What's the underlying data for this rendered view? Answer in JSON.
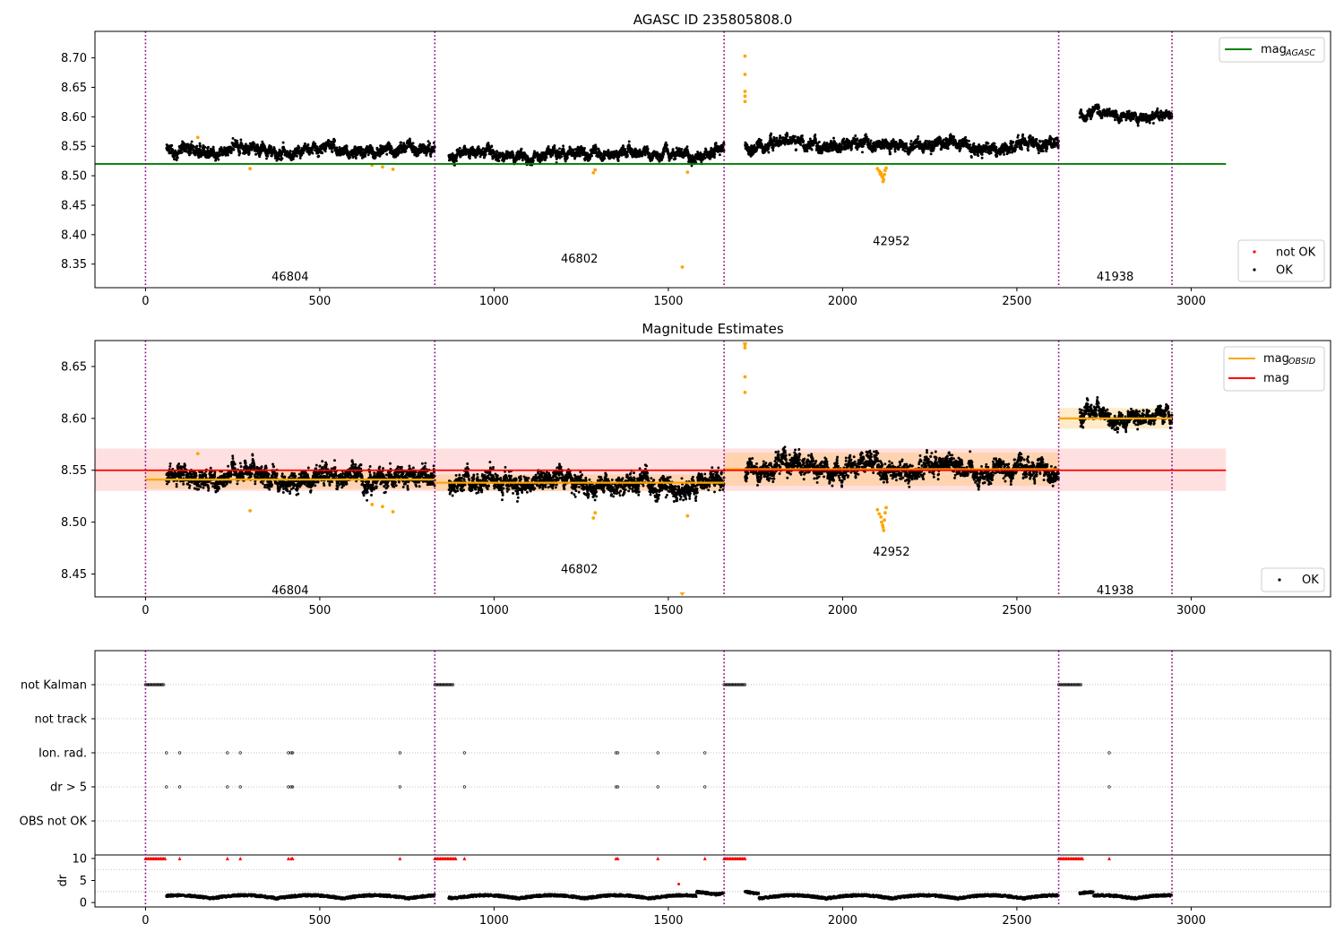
{
  "chart_data": [
    {
      "type": "scatter",
      "title": "AGASC ID 235805808.0",
      "xlim": [
        -145,
        3400
      ],
      "ylim": [
        8.31,
        8.745
      ],
      "xticks": [
        0,
        500,
        1000,
        1500,
        2000,
        2500,
        3000
      ],
      "yticks": [
        8.35,
        8.4,
        8.45,
        8.5,
        8.55,
        8.6,
        8.65,
        8.7
      ],
      "obs_boundaries": [
        0,
        830,
        1660,
        2620,
        2945
      ],
      "obsid_labels": [
        {
          "text": "46804",
          "x": 415,
          "y": 8.33
        },
        {
          "text": "46802",
          "x": 1245,
          "y": 8.36
        },
        {
          "text": "42952",
          "x": 2140,
          "y": 8.39
        },
        {
          "text": "41938",
          "x": 2782,
          "y": 8.33
        }
      ],
      "agasc_mag": 8.52,
      "agasc_line_x": [
        -145,
        3100
      ],
      "segment_levels": [
        {
          "x0": 60,
          "x1": 830,
          "y": 8.543,
          "spread": 0.011
        },
        {
          "x0": 870,
          "x1": 1660,
          "y": 8.537,
          "spread": 0.01
        },
        {
          "x0": 1720,
          "x1": 2620,
          "y": 8.552,
          "spread": 0.011
        },
        {
          "x0": 2680,
          "x1": 2945,
          "y": 8.602,
          "spread": 0.008
        }
      ],
      "outliers": [
        {
          "x": 150,
          "y": 8.565
        },
        {
          "x": 300,
          "y": 8.512
        },
        {
          "x": 650,
          "y": 8.518
        },
        {
          "x": 680,
          "y": 8.515
        },
        {
          "x": 710,
          "y": 8.511
        },
        {
          "x": 1285,
          "y": 8.505
        },
        {
          "x": 1290,
          "y": 8.51
        },
        {
          "x": 1540,
          "y": 8.345
        },
        {
          "x": 1555,
          "y": 8.506
        },
        {
          "x": 1720,
          "y": 8.703
        },
        {
          "x": 1720,
          "y": 8.672
        },
        {
          "x": 1720,
          "y": 8.643
        },
        {
          "x": 1720,
          "y": 8.635
        },
        {
          "x": 1720,
          "y": 8.626
        },
        {
          "x": 2100,
          "y": 8.512
        },
        {
          "x": 2105,
          "y": 8.508
        },
        {
          "x": 2110,
          "y": 8.505
        },
        {
          "x": 2112,
          "y": 8.5
        },
        {
          "x": 2115,
          "y": 8.497
        },
        {
          "x": 2118,
          "y": 8.493
        },
        {
          "x": 2120,
          "y": 8.502
        },
        {
          "x": 2122,
          "y": 8.509
        },
        {
          "x": 2125,
          "y": 8.513
        },
        {
          "x": 2108,
          "y": 8.503
        },
        {
          "x": 2116,
          "y": 8.49
        }
      ],
      "legend_upper": [
        {
          "label": "mag",
          "sub": "AGASC",
          "color": "#008000"
        }
      ],
      "legend_lower": [
        {
          "label": "not OK",
          "color": "#ff0000"
        },
        {
          "label": "OK",
          "color": "#000000"
        }
      ]
    },
    {
      "type": "scatter",
      "title": "Magnitude Estimates",
      "xlim": [
        -145,
        3400
      ],
      "ylim": [
        8.428,
        8.675
      ],
      "xticks": [
        0,
        500,
        1000,
        1500,
        2000,
        2500,
        3000
      ],
      "yticks": [
        8.45,
        8.5,
        8.55,
        8.6,
        8.65
      ],
      "obs_boundaries": [
        0,
        830,
        1660,
        2620,
        2945
      ],
      "obsid_labels": [
        {
          "text": "46804",
          "x": 415,
          "y": 8.435
        },
        {
          "text": "46802",
          "x": 1245,
          "y": 8.455
        },
        {
          "text": "42952",
          "x": 2140,
          "y": 8.472
        },
        {
          "text": "41938",
          "x": 2782,
          "y": 8.435
        }
      ],
      "mag": 8.55,
      "mag_band": [
        8.53,
        8.571
      ],
      "mag_line_x": [
        -145,
        3100
      ],
      "obsid_mags": [
        {
          "x0": 0,
          "x1": 830,
          "y": 8.541,
          "lo": 8.532,
          "hi": 8.55
        },
        {
          "x0": 830,
          "x1": 1660,
          "y": 8.538,
          "lo": 8.53,
          "hi": 8.546
        },
        {
          "x0": 1660,
          "x1": 2620,
          "y": 8.551,
          "lo": 8.535,
          "hi": 8.567
        },
        {
          "x0": 2620,
          "x1": 2945,
          "y": 8.6,
          "lo": 8.59,
          "hi": 8.61
        }
      ],
      "outliers": [
        {
          "x": 150,
          "y": 8.566
        },
        {
          "x": 300,
          "y": 8.511
        },
        {
          "x": 650,
          "y": 8.517
        },
        {
          "x": 680,
          "y": 8.515
        },
        {
          "x": 710,
          "y": 8.51
        },
        {
          "x": 1285,
          "y": 8.504
        },
        {
          "x": 1290,
          "y": 8.509
        },
        {
          "x": 1555,
          "y": 8.506
        },
        {
          "x": 1720,
          "y": 8.671
        },
        {
          "x": 1720,
          "y": 8.668
        },
        {
          "x": 1720,
          "y": 8.64
        },
        {
          "x": 1720,
          "y": 8.625
        },
        {
          "x": 2100,
          "y": 8.512
        },
        {
          "x": 2105,
          "y": 8.508
        },
        {
          "x": 2110,
          "y": 8.505
        },
        {
          "x": 2112,
          "y": 8.5
        },
        {
          "x": 2115,
          "y": 8.497
        },
        {
          "x": 2118,
          "y": 8.492
        },
        {
          "x": 2120,
          "y": 8.502
        },
        {
          "x": 2122,
          "y": 8.509
        },
        {
          "x": 2125,
          "y": 8.514
        },
        {
          "x": 2116,
          "y": 8.495
        }
      ],
      "offscale_marker": {
        "x": 1540,
        "y": 8.43
      },
      "legend_upper": [
        {
          "label": "mag",
          "sub": "OBSID",
          "color": "#ffa500"
        },
        {
          "label": "mag",
          "sub": "",
          "color": "#ff0000"
        }
      ],
      "legend_lower": [
        {
          "label": "OK",
          "color": "#000000"
        }
      ]
    },
    {
      "type": "scatter",
      "title": "",
      "xlim": [
        -145,
        3400
      ],
      "xticks": [
        0,
        500,
        1000,
        1500,
        2000,
        2500,
        3000
      ],
      "obs_boundaries": [
        0,
        830,
        1660,
        2620,
        2945
      ],
      "flag_rows": [
        "not Kalman",
        "not track",
        "Ion. rad.",
        "dr > 5",
        "OBS not OK"
      ],
      "flags": {
        "not Kalman": [
          [
            0,
            55
          ],
          [
            830,
            885
          ],
          [
            1660,
            1720
          ],
          [
            2620,
            2685
          ]
        ],
        "not track": [],
        "Ion. rad.": [
          60,
          98,
          235,
          272,
          410,
          418,
          422,
          730,
          915,
          1350,
          1355,
          1470,
          1605,
          2765
        ],
        "dr > 5": [
          60,
          98,
          235,
          272,
          410,
          418,
          422,
          730,
          915,
          1350,
          1355,
          1470,
          1605,
          2765
        ],
        "OBS not OK": []
      },
      "dr": {
        "ylabel": "dr",
        "yticks": [
          0,
          5,
          10
        ],
        "ylim": [
          -1,
          10.8
        ],
        "clipped_x_ranges": [
          [
            0,
            58
          ],
          [
            830,
            890
          ],
          [
            1660,
            1722
          ],
          [
            2620,
            2688
          ]
        ],
        "clipped_points": [
          98,
          235,
          272,
          410,
          418,
          422,
          730,
          915,
          1350,
          1355,
          1470,
          1605,
          2765
        ],
        "outlier_point": {
          "x": 1530,
          "y": 4.2
        }
      }
    }
  ]
}
